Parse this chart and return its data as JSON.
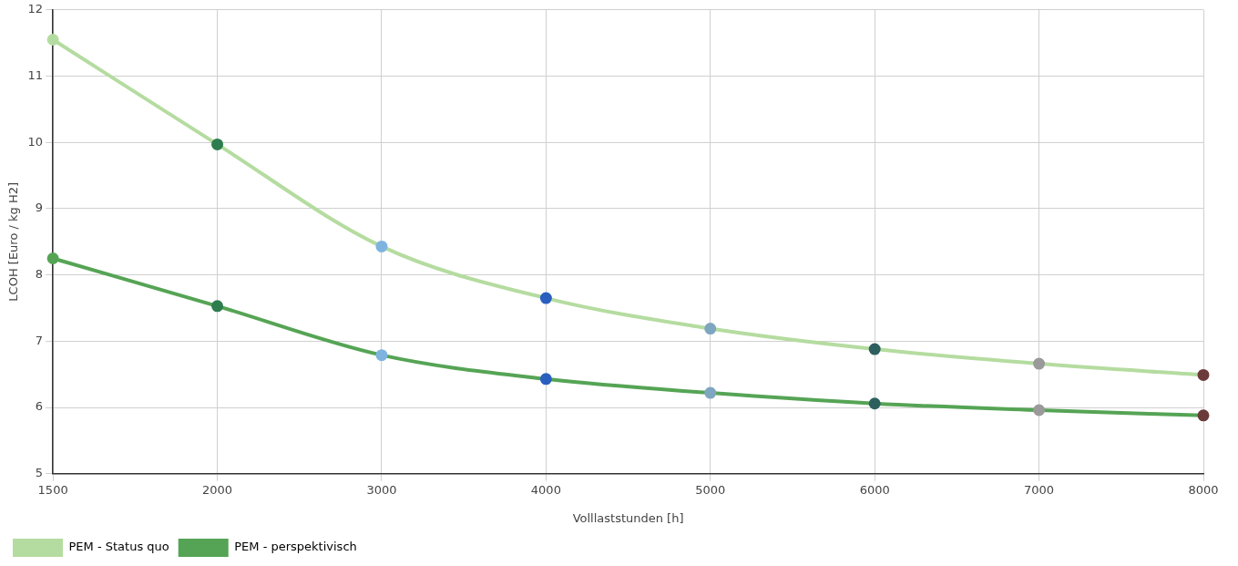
{
  "chart_data": {
    "type": "line",
    "xlabel": "Volllaststunden [h]",
    "ylabel": "LCOH [Euro / kg H2]",
    "categories": [
      "1500",
      "2000",
      "3000",
      "4000",
      "5000",
      "6000",
      "7000",
      "8000"
    ],
    "ylim": [
      5,
      12
    ],
    "yticks": [
      5,
      6,
      7,
      8,
      9,
      10,
      11,
      12
    ],
    "grid": true,
    "legend": "bottom left",
    "marker": "circle",
    "series": [
      {
        "name": "PEM - Status quo",
        "color": "#b5dca0",
        "colors": [
          "#b5dca0",
          "#2e7d4f",
          "#7fb3e0",
          "#2a5fbf",
          "#7fa6c0",
          "#2d5f5f",
          "#9a9a9a",
          "#6b3a3a"
        ],
        "values": [
          11.55,
          9.97,
          8.43,
          7.65,
          7.19,
          6.88,
          6.66,
          6.49
        ]
      },
      {
        "name": "PEM - perspektivisch",
        "color": "#55a455",
        "colors": [
          "#55a455",
          "#2e7d4f",
          "#7fb3e0",
          "#2a5fbf",
          "#7fa6c0",
          "#2d5f5f",
          "#9a9a9a",
          "#6b3a3a"
        ],
        "values": [
          8.25,
          7.53,
          6.79,
          6.43,
          6.22,
          6.06,
          5.96,
          5.88
        ]
      }
    ]
  }
}
